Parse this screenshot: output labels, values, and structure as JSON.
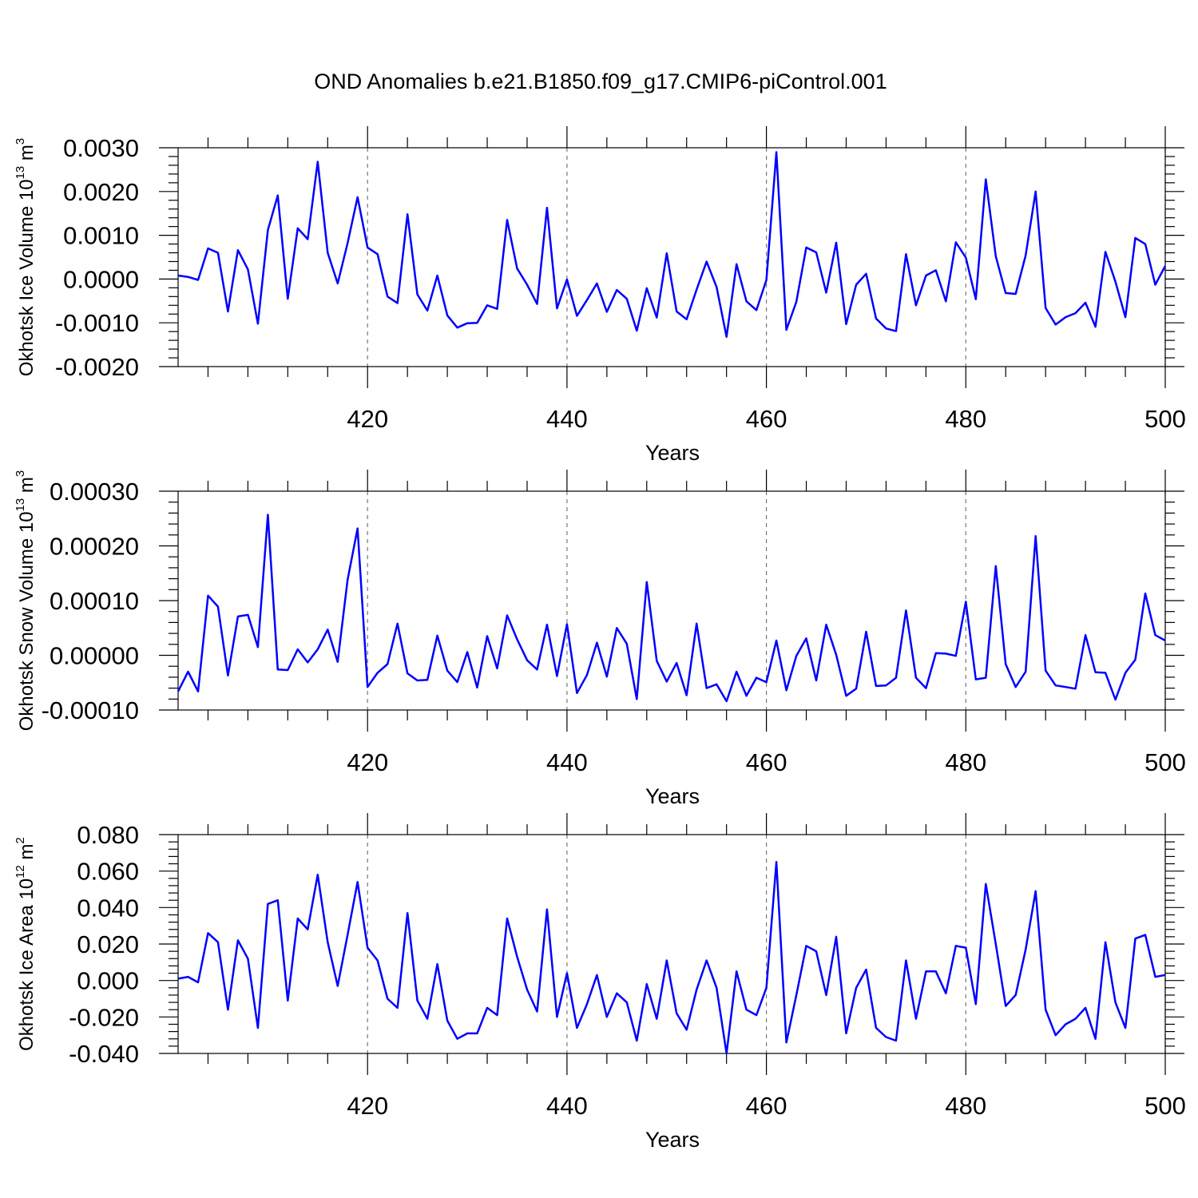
{
  "title": "OND Anomalies b.e21.B1850.f09_g17.CMIP6-piControl.001",
  "colors": {
    "series": "#0000ff",
    "axis": "#000000",
    "grid": "#777777"
  },
  "chart_data": [
    {
      "type": "line",
      "xlabel": "Years",
      "ylabel_main": "Okhotsk Ice Volume 10",
      "ylabel_exp": "13",
      "ylabel_unit": " m",
      "ylabel_unit_exp": "3",
      "xlim": [
        401,
        500
      ],
      "ylim": [
        -0.002,
        0.003
      ],
      "xticks": [
        420,
        440,
        460,
        480,
        500
      ],
      "xtick_labels": [
        "420",
        "440",
        "460",
        "480",
        "500"
      ],
      "yticks": [
        -0.002,
        -0.001,
        0.0,
        0.001,
        0.002,
        0.003
      ],
      "ytick_labels": [
        "-0.0020",
        "-0.0010",
        "0.0000",
        "0.0010",
        "0.0020",
        "0.0030"
      ],
      "grid": "vertical dashed at major x ticks",
      "x": [
        401,
        402,
        403,
        404,
        405,
        406,
        407,
        408,
        409,
        410,
        411,
        412,
        413,
        414,
        415,
        416,
        417,
        418,
        419,
        420,
        421,
        422,
        423,
        424,
        425,
        426,
        427,
        428,
        429,
        430,
        431,
        432,
        433,
        434,
        435,
        436,
        437,
        438,
        439,
        440,
        441,
        442,
        443,
        444,
        445,
        446,
        447,
        448,
        449,
        450,
        451,
        452,
        453,
        454,
        455,
        456,
        457,
        458,
        459,
        460,
        461,
        462,
        463,
        464,
        465,
        466,
        467,
        468,
        469,
        470,
        471,
        472,
        473,
        474,
        475,
        476,
        477,
        478,
        479,
        480,
        481,
        482,
        483,
        484,
        485,
        486,
        487,
        488,
        489,
        490,
        491,
        492,
        493,
        494,
        495,
        496,
        497,
        498,
        499,
        500
      ],
      "values": [
        8e-05,
        5e-05,
        -2e-05,
        0.0007,
        0.0006,
        -0.00074,
        0.00066,
        0.00022,
        -0.00102,
        0.00112,
        0.00191,
        -0.00045,
        0.00116,
        0.00091,
        0.00268,
        0.0006,
        -0.0001,
        0.00082,
        0.00187,
        0.00072,
        0.00057,
        -0.0004,
        -0.00055,
        0.00148,
        -0.00035,
        -0.00072,
        8e-05,
        -0.00083,
        -0.00111,
        -0.00101,
        -0.001,
        -0.0006,
        -0.00068,
        0.00135,
        0.00024,
        -0.00013,
        -0.00057,
        0.00163,
        -0.00067,
        -1e-05,
        -0.00084,
        -0.00048,
        -0.0001,
        -0.00075,
        -0.00025,
        -0.00045,
        -0.00118,
        -0.00021,
        -0.00088,
        0.00059,
        -0.00074,
        -0.00092,
        -0.00024,
        0.0004,
        -0.00018,
        -0.00132,
        0.00034,
        -0.00051,
        -0.00071,
        -2e-05,
        0.0029,
        -0.00116,
        -0.00052,
        0.00072,
        0.00061,
        -0.00031,
        0.00083,
        -0.00103,
        -0.00013,
        0.00012,
        -0.0009,
        -0.00113,
        -0.00119,
        0.00057,
        -0.0006,
        8e-05,
        0.0002,
        -0.00051,
        0.00084,
        0.00049,
        -0.00046,
        0.00228,
        0.00052,
        -0.00032,
        -0.00034,
        0.00054,
        0.002,
        -0.00066,
        -0.00104,
        -0.00087,
        -0.00078,
        -0.00054,
        -0.00109,
        0.00062,
        -6e-05,
        -0.00087,
        0.00094,
        0.0008,
        -0.00013,
        0.0003
      ]
    },
    {
      "type": "line",
      "xlabel": "Years",
      "ylabel_main": "Okhotsk Snow Volume 10",
      "ylabel_exp": "13",
      "ylabel_unit": " m",
      "ylabel_unit_exp": "3",
      "xlim": [
        401,
        500
      ],
      "ylim": [
        -0.0001,
        0.0003
      ],
      "xticks": [
        420,
        440,
        460,
        480,
        500
      ],
      "xtick_labels": [
        "420",
        "440",
        "460",
        "480",
        "500"
      ],
      "yticks": [
        -0.0001,
        0.0,
        0.0001,
        0.0002,
        0.0003
      ],
      "ytick_labels": [
        "-0.00010",
        "0.00000",
        "0.00010",
        "0.00020",
        "0.00030"
      ],
      "grid": "vertical dashed at major x ticks",
      "x": [
        401,
        402,
        403,
        404,
        405,
        406,
        407,
        408,
        409,
        410,
        411,
        412,
        413,
        414,
        415,
        416,
        417,
        418,
        419,
        420,
        421,
        422,
        423,
        424,
        425,
        426,
        427,
        428,
        429,
        430,
        431,
        432,
        433,
        434,
        435,
        436,
        437,
        438,
        439,
        440,
        441,
        442,
        443,
        444,
        445,
        446,
        447,
        448,
        449,
        450,
        451,
        452,
        453,
        454,
        455,
        456,
        457,
        458,
        459,
        460,
        461,
        462,
        463,
        464,
        465,
        466,
        467,
        468,
        469,
        470,
        471,
        472,
        473,
        474,
        475,
        476,
        477,
        478,
        479,
        480,
        481,
        482,
        483,
        484,
        485,
        486,
        487,
        488,
        489,
        490,
        491,
        492,
        493,
        494,
        495,
        496,
        497,
        498,
        499,
        500
      ],
      "values": [
        -6.6e-05,
        -3e-05,
        -6.6e-05,
        0.000109,
        8.9e-05,
        -3.7e-05,
        7.1e-05,
        7.4e-05,
        1.5e-05,
        0.000257,
        -2.6e-05,
        -2.7e-05,
        1.1e-05,
        -1.3e-05,
        1.1e-05,
        4.7e-05,
        -1.2e-05,
        0.000138,
        0.000232,
        -5.8e-05,
        -3.2e-05,
        -1.6e-05,
        5.8e-05,
        -3.3e-05,
        -4.6e-05,
        -4.5e-05,
        3.6e-05,
        -2.8e-05,
        -4.9e-05,
        6e-06,
        -5.9e-05,
        3.5e-05,
        -2.4e-05,
        7.3e-05,
        2.9e-05,
        -9e-06,
        -2.6e-05,
        5.6e-05,
        -3.8e-05,
        5.7e-05,
        -6.9e-05,
        -3.6e-05,
        2.3e-05,
        -3.9e-05,
        5e-05,
        2.1e-05,
        -8e-05,
        0.000134,
        -1e-05,
        -4.8e-05,
        -1.4e-05,
        -7.3e-05,
        5.8e-05,
        -6e-05,
        -5.3e-05,
        -8.4e-05,
        -3e-05,
        -7.4e-05,
        -4.1e-05,
        -4.9e-05,
        2.7e-05,
        -6.4e-05,
        -1e-06,
        3.1e-05,
        -4.6e-05,
        5.6e-05,
        1e-06,
        -7.4e-05,
        -6.1e-05,
        4.3e-05,
        -5.6e-05,
        -5.5e-05,
        -4.1e-05,
        8.2e-05,
        -4.1e-05,
        -6e-05,
        4e-06,
        3e-06,
        -1e-06,
        9.8e-05,
        -4.4e-05,
        -4.1e-05,
        0.000163,
        -1.6e-05,
        -5.8e-05,
        -3e-05,
        0.000218,
        -2.8e-05,
        -5.5e-05,
        -5.8e-05,
        -6.1e-05,
        3.7e-05,
        -3.1e-05,
        -3.2e-05,
        -8.1e-05,
        -3.2e-05,
        -8e-06,
        0.000113,
        3.7e-05,
        2.7e-05
      ]
    },
    {
      "type": "line",
      "xlabel": "Years",
      "ylabel_main": "Okhotsk Ice Area 10",
      "ylabel_exp": "12",
      "ylabel_unit": " m",
      "ylabel_unit_exp": "2",
      "xlim": [
        401,
        500
      ],
      "ylim": [
        -0.04,
        0.08
      ],
      "xticks": [
        420,
        440,
        460,
        480,
        500
      ],
      "xtick_labels": [
        "420",
        "440",
        "460",
        "480",
        "500"
      ],
      "yticks": [
        -0.04,
        -0.02,
        0.0,
        0.02,
        0.04,
        0.06,
        0.08
      ],
      "ytick_labels": [
        "-0.040",
        "-0.020",
        "0.000",
        "0.020",
        "0.040",
        "0.060",
        "0.080"
      ],
      "grid": "vertical dashed at major x ticks",
      "x": [
        401,
        402,
        403,
        404,
        405,
        406,
        407,
        408,
        409,
        410,
        411,
        412,
        413,
        414,
        415,
        416,
        417,
        418,
        419,
        420,
        421,
        422,
        423,
        424,
        425,
        426,
        427,
        428,
        429,
        430,
        431,
        432,
        433,
        434,
        435,
        436,
        437,
        438,
        439,
        440,
        441,
        442,
        443,
        444,
        445,
        446,
        447,
        448,
        449,
        450,
        451,
        452,
        453,
        454,
        455,
        456,
        457,
        458,
        459,
        460,
        461,
        462,
        463,
        464,
        465,
        466,
        467,
        468,
        469,
        470,
        471,
        472,
        473,
        474,
        475,
        476,
        477,
        478,
        479,
        480,
        481,
        482,
        483,
        484,
        485,
        486,
        487,
        488,
        489,
        490,
        491,
        492,
        493,
        494,
        495,
        496,
        497,
        498,
        499,
        500
      ],
      "values": [
        0.001,
        0.002,
        -0.001,
        0.026,
        0.021,
        -0.016,
        0.022,
        0.012,
        -0.026,
        0.042,
        0.044,
        -0.011,
        0.034,
        0.028,
        0.058,
        0.021,
        -0.003,
        0.025,
        0.054,
        0.018,
        0.011,
        -0.01,
        -0.015,
        0.037,
        -0.011,
        -0.021,
        0.009,
        -0.022,
        -0.032,
        -0.029,
        -0.029,
        -0.015,
        -0.019,
        0.034,
        0.013,
        -0.005,
        -0.017,
        0.039,
        -0.02,
        0.004,
        -0.026,
        -0.013,
        0.003,
        -0.02,
        -0.007,
        -0.012,
        -0.033,
        -0.002,
        -0.021,
        0.011,
        -0.018,
        -0.027,
        -0.005,
        0.011,
        -0.004,
        -0.04,
        0.005,
        -0.016,
        -0.019,
        -0.004,
        0.065,
        -0.034,
        -0.008,
        0.019,
        0.016,
        -0.008,
        0.024,
        -0.029,
        -0.004,
        0.006,
        -0.026,
        -0.031,
        -0.033,
        0.011,
        -0.021,
        0.005,
        0.005,
        -0.007,
        0.019,
        0.018,
        -0.013,
        0.053,
        0.02,
        -0.014,
        -0.008,
        0.017,
        0.049,
        -0.016,
        -0.03,
        -0.024,
        -0.021,
        -0.015,
        -0.032,
        0.021,
        -0.012,
        -0.026,
        0.023,
        0.025,
        0.002,
        0.003
      ]
    }
  ]
}
